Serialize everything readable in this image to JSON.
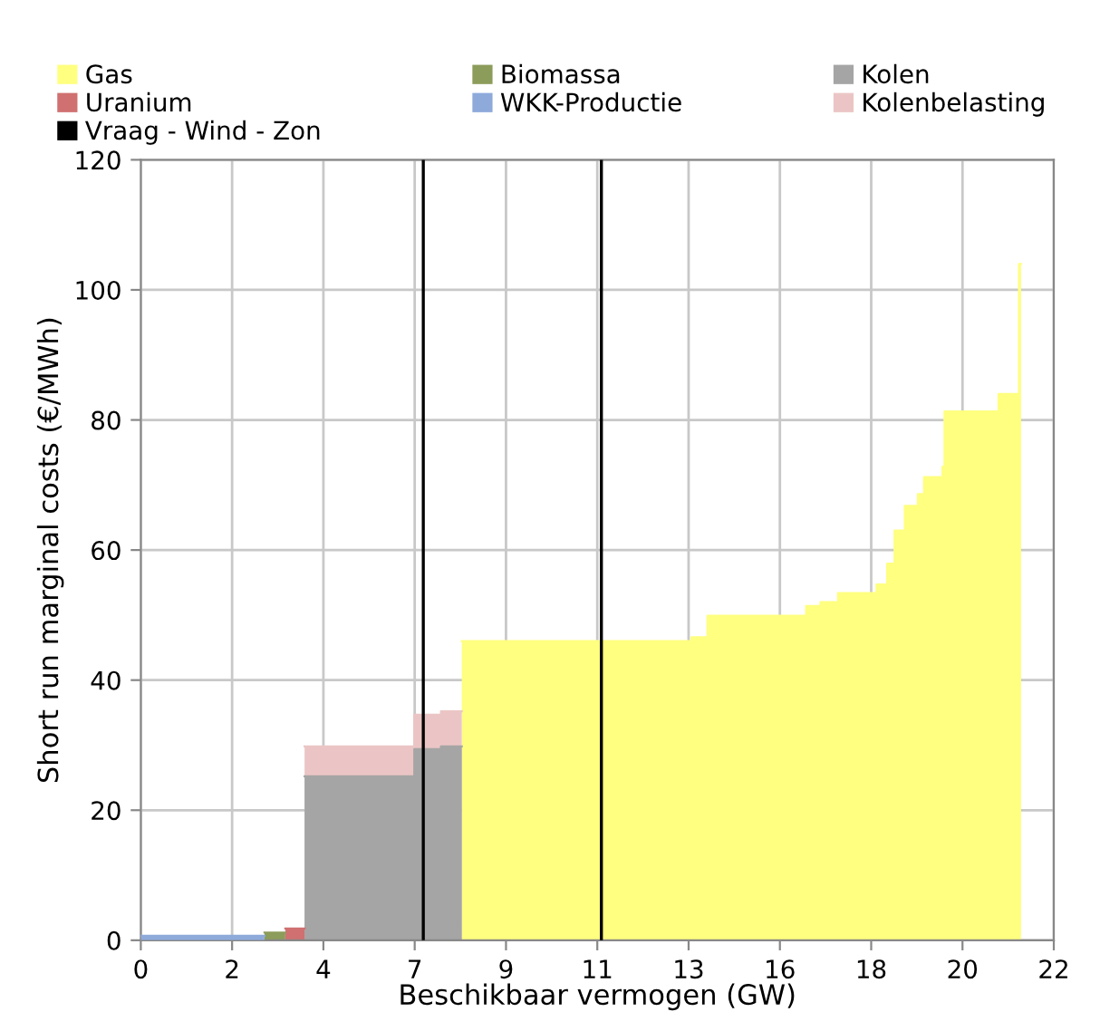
{
  "chart_data": {
    "type": "area",
    "xlabel": "Beschikbaar vermogen (GW)",
    "ylabel": "Short run marginal costs (€/MWh)",
    "xlim": [
      0,
      22.3
    ],
    "xticks": [
      {
        "value": 0,
        "label": "0"
      },
      {
        "value": 2.23,
        "label": "2"
      },
      {
        "value": 4.46,
        "label": "4"
      },
      {
        "value": 6.69,
        "label": "7"
      },
      {
        "value": 8.92,
        "label": "9"
      },
      {
        "value": 11.15,
        "label": "11"
      },
      {
        "value": 13.38,
        "label": "13"
      },
      {
        "value": 15.61,
        "label": "16"
      },
      {
        "value": 17.84,
        "label": "18"
      },
      {
        "value": 20.07,
        "label": "20"
      },
      {
        "value": 22.3,
        "label": "22"
      }
    ],
    "ylim": [
      0,
      120
    ],
    "yticks": [
      0,
      20,
      40,
      60,
      80,
      100,
      120
    ],
    "grid": true,
    "legend": "top",
    "series": [
      {
        "name": "Gas",
        "color": "#ffff80",
        "x": [
          7.84,
          13.45,
          13.45,
          13.84,
          13.84,
          16.25,
          16.25,
          16.6,
          16.6,
          17.03,
          17.03,
          17.97,
          17.97,
          18.23,
          18.23,
          18.41,
          18.41,
          18.66,
          18.66,
          18.98,
          18.98,
          19.13,
          19.13,
          19.58,
          19.58,
          19.63,
          19.63,
          20.95,
          20.95,
          21.45,
          21.45,
          21.5
        ],
        "values": [
          46,
          46,
          46.6,
          46.6,
          49.9,
          49.9,
          51.4,
          51.4,
          52,
          52,
          53.4,
          53.4,
          54.7,
          54.7,
          57.9,
          57.9,
          63,
          63,
          66.8,
          66.8,
          68.6,
          68.6,
          71.2,
          71.2,
          72.8,
          72.8,
          81.3,
          81.3,
          84,
          84,
          104,
          104
        ]
      },
      {
        "name": "Biomassa",
        "color": "#8c9c5a",
        "x": [
          3.02,
          3.53
        ],
        "values": [
          1.2,
          1.2
        ]
      },
      {
        "name": "Kolen",
        "color": "#a5a5a5",
        "x": [
          4.0,
          6.68,
          6.68,
          7.33,
          7.33,
          7.84
        ],
        "values": [
          25.2,
          25.2,
          29.4,
          29.4,
          29.8,
          29.8
        ]
      },
      {
        "name": "Uranium",
        "color": "#d07070",
        "x": [
          3.53,
          4.0
        ],
        "values": [
          1.8,
          1.8
        ]
      },
      {
        "name": "WKK-Productie",
        "color": "#8eaadb",
        "x": [
          0,
          3.02
        ],
        "values": [
          0.7,
          0.7
        ]
      },
      {
        "name": "Kolenbelasting",
        "color": "#ebc5c5",
        "x": [
          4.0,
          6.68,
          6.68,
          7.33,
          7.33,
          7.84
        ],
        "values": [
          29.8,
          29.8,
          34.7,
          34.7,
          35.2,
          35.2
        ]
      }
    ],
    "ref_lines": [
      {
        "axis": "x",
        "value": 6.9,
        "label": "Vraag - Wind - Zon",
        "color": "#000000"
      },
      {
        "axis": "x",
        "value": 11.25,
        "color": "#000000"
      }
    ]
  }
}
